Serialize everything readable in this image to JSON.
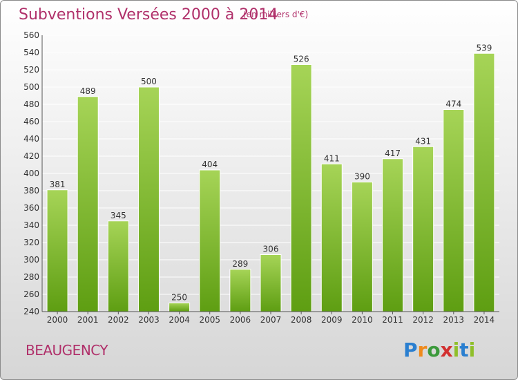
{
  "title": "Subventions Versées 2000 à 2014",
  "unit_note": "(en milliers d'€)",
  "commune": "BEAUGENCY",
  "logo": {
    "text": "Proxiti",
    "letters": [
      "P",
      "r",
      "o",
      "x",
      "i",
      "t",
      "i"
    ]
  },
  "colors": {
    "title": "#b0306a",
    "bar_light": "#a6d457",
    "bar_dark": "#5e9e12",
    "grid": "#ffffff"
  },
  "chart_data": {
    "type": "bar",
    "categories": [
      "2000",
      "2001",
      "2002",
      "2003",
      "2004",
      "2005",
      "2006",
      "2007",
      "2008",
      "2009",
      "2010",
      "2011",
      "2012",
      "2013",
      "2014"
    ],
    "values": [
      381,
      489,
      345,
      500,
      250,
      404,
      289,
      306,
      526,
      411,
      390,
      417,
      431,
      474,
      539
    ],
    "ylim": [
      240,
      560
    ],
    "yticks": [
      240,
      260,
      280,
      300,
      320,
      340,
      360,
      380,
      400,
      420,
      440,
      460,
      480,
      500,
      520,
      540,
      560
    ],
    "grid": true,
    "legend": "none"
  }
}
